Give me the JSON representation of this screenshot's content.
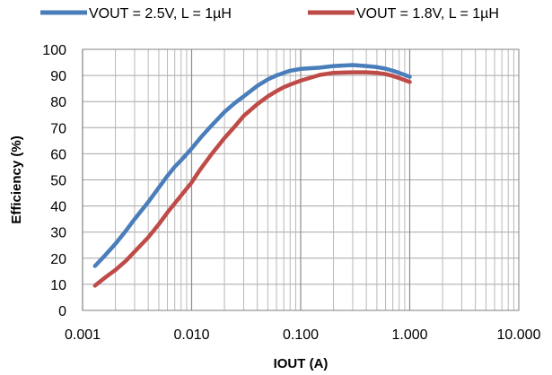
{
  "chart_data": {
    "type": "line",
    "title": "",
    "xlabel": "IOUT (A)",
    "ylabel": "Efficiency (%)",
    "x_scale": "log",
    "xlim": [
      0.001,
      10
    ],
    "ylim": [
      0,
      100
    ],
    "x_ticks": [
      0.001,
      0.01,
      0.1,
      1,
      10
    ],
    "x_tick_labels": [
      "0.001",
      "0.010",
      "0.100",
      "1.000",
      "10.000"
    ],
    "y_ticks": [
      0,
      10,
      20,
      30,
      40,
      50,
      60,
      70,
      80,
      90,
      100
    ],
    "y_tick_labels": [
      "0",
      "10",
      "20",
      "30",
      "40",
      "50",
      "60",
      "70",
      "80",
      "90",
      "100"
    ],
    "grid": true,
    "legend_position": "top",
    "series": [
      {
        "name": "VOUT = 2.5V, L = 1µH",
        "color": "#4a7ebb",
        "x": [
          0.0013,
          0.0016,
          0.002,
          0.0025,
          0.003,
          0.004,
          0.005,
          0.006,
          0.007,
          0.008,
          0.01,
          0.012,
          0.015,
          0.02,
          0.025,
          0.03,
          0.04,
          0.05,
          0.06,
          0.07,
          0.08,
          0.1,
          0.15,
          0.2,
          0.3,
          0.4,
          0.5,
          0.6,
          0.7,
          0.8,
          1.0
        ],
        "y": [
          17,
          21,
          25.5,
          30.5,
          35,
          41.5,
          47,
          51.5,
          55,
          57.5,
          62,
          66,
          70.5,
          76,
          79.5,
          82,
          86,
          88.5,
          90,
          91,
          91.8,
          92.5,
          93,
          93.6,
          94,
          93.6,
          93.2,
          92.6,
          91.8,
          91,
          89.5
        ]
      },
      {
        "name": "VOUT = 1.8V, L = 1µH",
        "color": "#be4b48",
        "x": [
          0.0013,
          0.0016,
          0.002,
          0.0025,
          0.003,
          0.004,
          0.005,
          0.006,
          0.007,
          0.008,
          0.01,
          0.012,
          0.015,
          0.02,
          0.025,
          0.03,
          0.04,
          0.05,
          0.06,
          0.07,
          0.08,
          0.1,
          0.15,
          0.2,
          0.3,
          0.4,
          0.5,
          0.6,
          0.7,
          0.8,
          1.0
        ],
        "y": [
          9.5,
          12.5,
          15.5,
          19,
          22.5,
          28,
          33,
          37.5,
          41,
          44,
          49,
          54,
          59.5,
          66,
          70.5,
          74.5,
          79,
          82,
          84,
          85.5,
          86.5,
          88,
          90.2,
          91,
          91.2,
          91.2,
          91,
          90.5,
          89.8,
          89,
          87.5
        ]
      }
    ]
  }
}
